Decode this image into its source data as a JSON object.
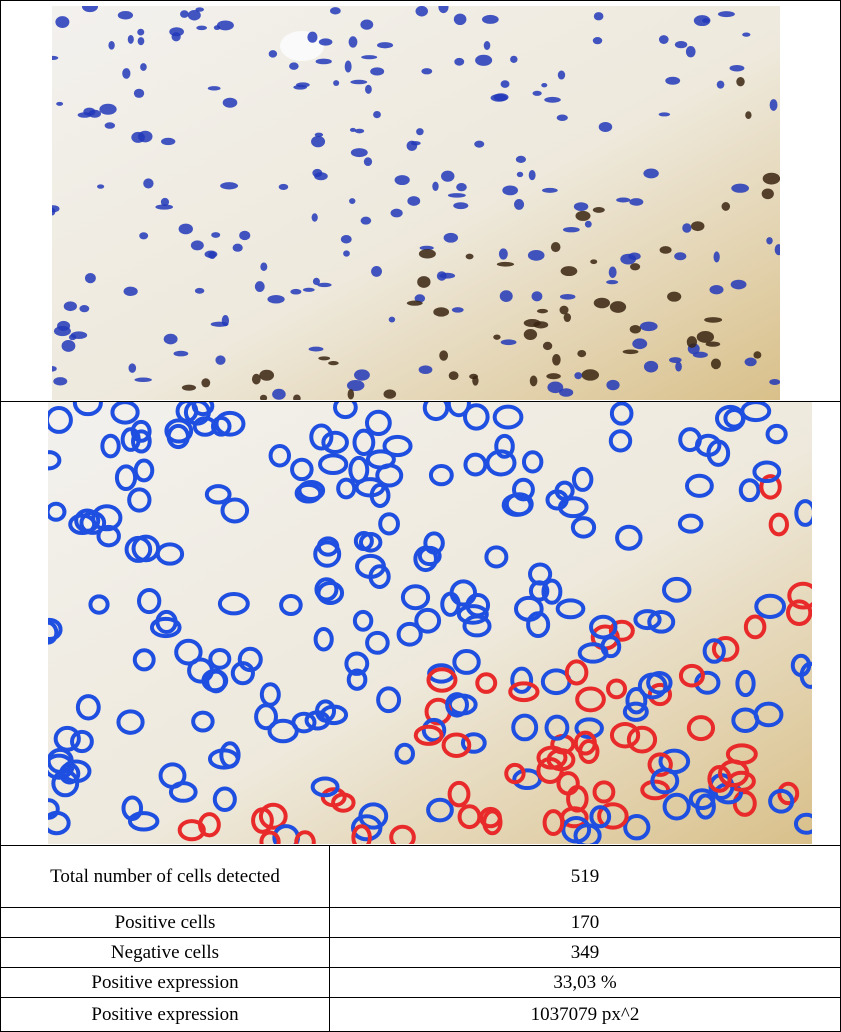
{
  "table": {
    "rows": [
      [
        "Total number of cells detected",
        "519"
      ],
      [
        "Positive cells",
        "170"
      ],
      [
        "Negative cells",
        "349"
      ],
      [
        "Positive expression",
        "33,03 %"
      ],
      [
        "Positive expression",
        "1037079 px^2"
      ]
    ]
  }
}
